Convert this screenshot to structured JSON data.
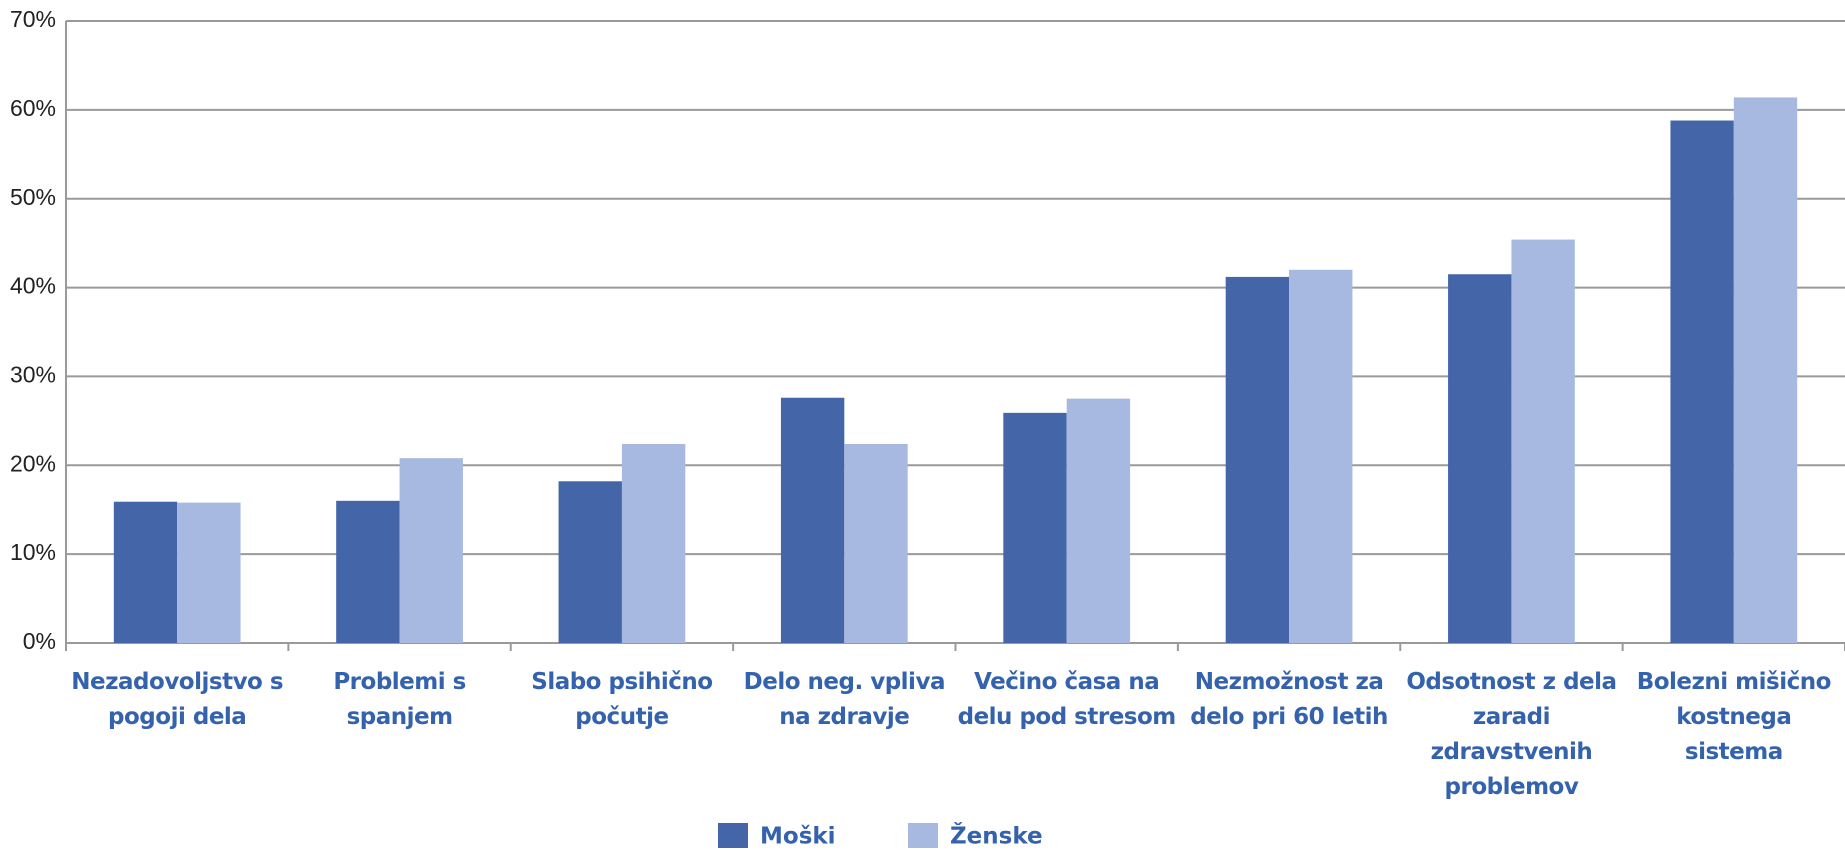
{
  "chart_data": {
    "type": "bar",
    "categories": [
      "Nezadovoljstvo s pogoji dela",
      "Problemi s spanjem",
      "Slabo psihično počutje",
      "Delo neg. vpliva na zdravje",
      "Večino časa na delu pod stresom",
      "Nezmožnost za delo pri 60 letih",
      "Odsotnost z dela zaradi zdravstvenih problemov",
      "Bolezni mišično kostnega sistema"
    ],
    "series": [
      {
        "name": "Moški",
        "color": "#4466a8",
        "values": [
          15.9,
          16.0,
          18.2,
          27.6,
          25.9,
          41.2,
          41.5,
          58.8
        ]
      },
      {
        "name": "Ženske",
        "color": "#a7b9e0",
        "values": [
          15.8,
          20.8,
          22.4,
          22.4,
          27.5,
          42.0,
          45.4,
          61.4
        ]
      }
    ],
    "ylim": [
      0,
      70
    ],
    "yticks": [
      {
        "value": 0,
        "label": "0%"
      },
      {
        "value": 10,
        "label": "10%"
      },
      {
        "value": 20,
        "label": "20%"
      },
      {
        "value": 30,
        "label": "30%"
      },
      {
        "value": 40,
        "label": "40%"
      },
      {
        "value": 50,
        "label": "50%"
      },
      {
        "value": 60,
        "label": "60%"
      },
      {
        "value": 70,
        "label": "70%"
      }
    ],
    "grid": true,
    "legend": "bottom"
  }
}
